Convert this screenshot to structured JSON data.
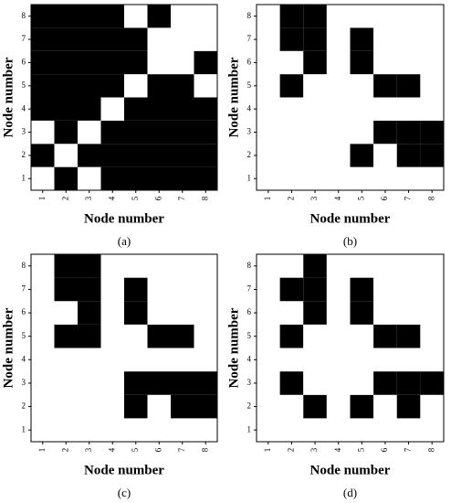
{
  "chart_data": [
    {
      "type": "heatmap",
      "caption": "(a)",
      "xlabel": "Node number",
      "ylabel": "Node number",
      "x": [
        1,
        2,
        3,
        4,
        5,
        6,
        7,
        8
      ],
      "y": [
        1,
        2,
        3,
        4,
        5,
        6,
        7,
        8
      ],
      "xlim": [
        0.5,
        8.5
      ],
      "ylim": [
        0.5,
        8.5
      ],
      "xticks": [
        1,
        2,
        3,
        4,
        5,
        6,
        7,
        8
      ],
      "yticks": [
        1,
        2,
        3,
        4,
        5,
        6,
        7,
        8
      ],
      "colors": [
        "#ffffff",
        "#000000"
      ],
      "z": [
        [
          0,
          1,
          0,
          1,
          1,
          1,
          1,
          1
        ],
        [
          1,
          0,
          1,
          1,
          1,
          1,
          1,
          1
        ],
        [
          0,
          1,
          0,
          1,
          1,
          1,
          1,
          1
        ],
        [
          1,
          1,
          1,
          0,
          1,
          1,
          1,
          1
        ],
        [
          1,
          1,
          1,
          1,
          0,
          1,
          1,
          0
        ],
        [
          1,
          1,
          1,
          1,
          1,
          0,
          0,
          1
        ],
        [
          1,
          1,
          1,
          1,
          1,
          0,
          0,
          0
        ],
        [
          1,
          1,
          1,
          1,
          0,
          1,
          0,
          0
        ]
      ]
    },
    {
      "type": "heatmap",
      "caption": "(b)",
      "xlabel": "Node number",
      "ylabel": "Node number",
      "x": [
        1,
        2,
        3,
        4,
        5,
        6,
        7,
        8
      ],
      "y": [
        1,
        2,
        3,
        4,
        5,
        6,
        7,
        8
      ],
      "xlim": [
        0.5,
        8.5
      ],
      "ylim": [
        0.5,
        8.5
      ],
      "xticks": [
        1,
        2,
        3,
        4,
        5,
        6,
        7,
        8
      ],
      "yticks": [
        1,
        2,
        3,
        4,
        5,
        6,
        7,
        8
      ],
      "colors": [
        "#ffffff",
        "#000000"
      ],
      "z": [
        [
          0,
          0,
          0,
          0,
          0,
          0,
          0,
          0
        ],
        [
          0,
          0,
          0,
          0,
          1,
          0,
          1,
          1
        ],
        [
          0,
          0,
          0,
          0,
          0,
          1,
          1,
          1
        ],
        [
          0,
          0,
          0,
          0,
          0,
          0,
          0,
          0
        ],
        [
          0,
          1,
          0,
          0,
          0,
          1,
          1,
          0
        ],
        [
          0,
          0,
          1,
          0,
          1,
          0,
          0,
          0
        ],
        [
          0,
          1,
          1,
          0,
          1,
          0,
          0,
          0
        ],
        [
          0,
          1,
          1,
          0,
          0,
          0,
          0,
          0
        ]
      ]
    },
    {
      "type": "heatmap",
      "caption": "(c)",
      "xlabel": "Node number",
      "ylabel": "Node number",
      "x": [
        1,
        2,
        3,
        4,
        5,
        6,
        7,
        8
      ],
      "y": [
        1,
        2,
        3,
        4,
        5,
        6,
        7,
        8
      ],
      "xlim": [
        0.5,
        8.5
      ],
      "ylim": [
        0.5,
        8.5
      ],
      "xticks": [
        1,
        2,
        3,
        4,
        5,
        6,
        7,
        8
      ],
      "yticks": [
        1,
        2,
        3,
        4,
        5,
        6,
        7,
        8
      ],
      "colors": [
        "#ffffff",
        "#000000"
      ],
      "z": [
        [
          0,
          0,
          0,
          0,
          0,
          0,
          0,
          0
        ],
        [
          0,
          0,
          0,
          0,
          1,
          0,
          1,
          1
        ],
        [
          0,
          0,
          0,
          0,
          1,
          1,
          1,
          1
        ],
        [
          0,
          0,
          0,
          0,
          0,
          0,
          0,
          0
        ],
        [
          0,
          1,
          1,
          0,
          0,
          1,
          1,
          0
        ],
        [
          0,
          0,
          1,
          0,
          1,
          0,
          0,
          0
        ],
        [
          0,
          1,
          1,
          0,
          1,
          0,
          0,
          0
        ],
        [
          0,
          1,
          1,
          0,
          0,
          0,
          0,
          0
        ]
      ]
    },
    {
      "type": "heatmap",
      "caption": "(d)",
      "xlabel": "Node number",
      "ylabel": "Node number",
      "x": [
        1,
        2,
        3,
        4,
        5,
        6,
        7,
        8
      ],
      "y": [
        1,
        2,
        3,
        4,
        5,
        6,
        7,
        8
      ],
      "xlim": [
        0.5,
        8.5
      ],
      "ylim": [
        0.5,
        8.5
      ],
      "xticks": [
        1,
        2,
        3,
        4,
        5,
        6,
        7,
        8
      ],
      "yticks": [
        1,
        2,
        3,
        4,
        5,
        6,
        7,
        8
      ],
      "colors": [
        "#ffffff",
        "#000000"
      ],
      "z": [
        [
          0,
          0,
          0,
          0,
          0,
          0,
          0,
          0
        ],
        [
          0,
          0,
          1,
          0,
          1,
          0,
          1,
          0
        ],
        [
          0,
          1,
          0,
          0,
          0,
          1,
          1,
          1
        ],
        [
          0,
          0,
          0,
          0,
          0,
          0,
          0,
          0
        ],
        [
          0,
          1,
          0,
          0,
          0,
          1,
          1,
          0
        ],
        [
          0,
          0,
          1,
          0,
          1,
          0,
          0,
          0
        ],
        [
          0,
          1,
          1,
          0,
          1,
          0,
          0,
          0
        ],
        [
          0,
          0,
          1,
          0,
          0,
          0,
          0,
          0
        ]
      ]
    }
  ]
}
